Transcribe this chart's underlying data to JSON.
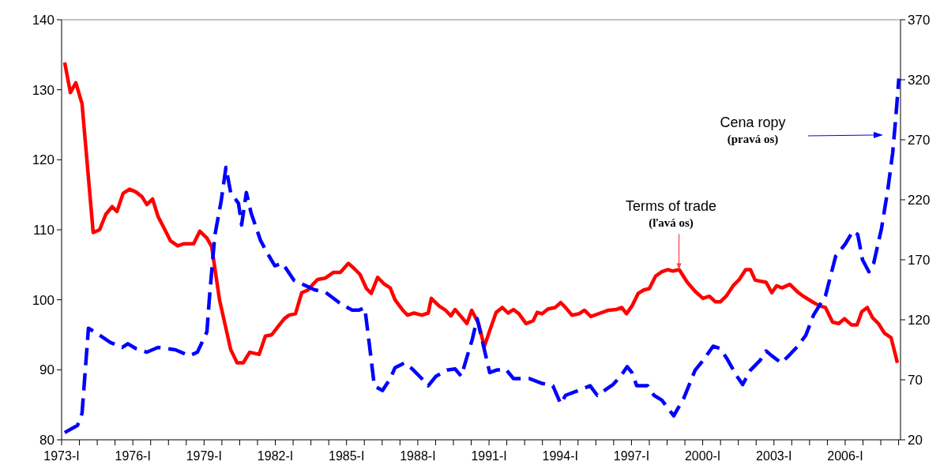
{
  "chart_data": {
    "type": "line",
    "xlim": [
      1973,
      2008.33
    ],
    "xticks": [
      {
        "value": 1973,
        "label": "1973-I"
      },
      {
        "value": 1973.75,
        "label": null
      },
      {
        "value": 1974.5,
        "label": null
      },
      {
        "value": 1975.25,
        "label": null
      },
      {
        "value": 1976,
        "label": "1976-I"
      },
      {
        "value": 1976.75,
        "label": null
      },
      {
        "value": 1977.5,
        "label": null
      },
      {
        "value": 1978.25,
        "label": null
      },
      {
        "value": 1979,
        "label": "1979-I"
      },
      {
        "value": 1979.75,
        "label": null
      },
      {
        "value": 1980.5,
        "label": null
      },
      {
        "value": 1981.25,
        "label": null
      },
      {
        "value": 1982,
        "label": "1982-I"
      },
      {
        "value": 1982.75,
        "label": null
      },
      {
        "value": 1983.5,
        "label": null
      },
      {
        "value": 1984.25,
        "label": null
      },
      {
        "value": 1985,
        "label": "1985-I"
      },
      {
        "value": 1985.75,
        "label": null
      },
      {
        "value": 1986.5,
        "label": null
      },
      {
        "value": 1987.25,
        "label": null
      },
      {
        "value": 1988,
        "label": "1988-I"
      },
      {
        "value": 1988.75,
        "label": null
      },
      {
        "value": 1989.5,
        "label": null
      },
      {
        "value": 1990.25,
        "label": null
      },
      {
        "value": 1991,
        "label": "1991-I"
      },
      {
        "value": 1991.75,
        "label": null
      },
      {
        "value": 1992.5,
        "label": null
      },
      {
        "value": 1993.25,
        "label": null
      },
      {
        "value": 1994,
        "label": "1994-I"
      },
      {
        "value": 1994.75,
        "label": null
      },
      {
        "value": 1995.5,
        "label": null
      },
      {
        "value": 1996.25,
        "label": null
      },
      {
        "value": 1997,
        "label": "1997-I"
      },
      {
        "value": 1997.75,
        "label": null
      },
      {
        "value": 1998.5,
        "label": null
      },
      {
        "value": 1999.25,
        "label": null
      },
      {
        "value": 2000,
        "label": "2000-I"
      },
      {
        "value": 2000.75,
        "label": null
      },
      {
        "value": 2001.5,
        "label": null
      },
      {
        "value": 2002.25,
        "label": null
      },
      {
        "value": 2003,
        "label": "2003-I"
      },
      {
        "value": 2003.75,
        "label": null
      },
      {
        "value": 2004.5,
        "label": null
      },
      {
        "value": 2005.25,
        "label": null
      },
      {
        "value": 2006,
        "label": "2006-I"
      },
      {
        "value": 2006.75,
        "label": null
      },
      {
        "value": 2007.5,
        "label": null
      },
      {
        "value": 2008.25,
        "label": null
      }
    ],
    "ylim": [
      80,
      140
    ],
    "yticks": [
      80,
      90,
      100,
      110,
      120,
      130,
      140
    ],
    "y2lim": [
      20,
      370
    ],
    "y2ticks": [
      20,
      70,
      120,
      170,
      220,
      270,
      320,
      370
    ],
    "grid": false,
    "marker": "none",
    "series": [
      {
        "color": "#ff0000",
        "line_style": "solid",
        "x": [
          1973.13,
          1973.37,
          1973.6,
          1973.86,
          1974.33,
          1974.6,
          1974.86,
          1975.13,
          1975.33,
          1975.59,
          1975.86,
          1976.13,
          1976.39,
          1976.59,
          1976.83,
          1977.06,
          1977.32,
          1977.59,
          1977.89,
          1978.16,
          1978.56,
          1978.82,
          1979.12,
          1979.32,
          1979.65,
          1980.12,
          1980.39,
          1980.65,
          1980.92,
          1981.32,
          1981.58,
          1981.85,
          1982.12,
          1982.38,
          1982.58,
          1982.85,
          1983.11,
          1983.38,
          1983.58,
          1983.78,
          1984.11,
          1984.44,
          1984.74,
          1985.08,
          1985.31,
          1985.57,
          1985.84,
          1986.04,
          1986.31,
          1986.57,
          1986.84,
          1987.04,
          1987.37,
          1987.57,
          1987.84,
          1988.17,
          1988.44,
          1988.57,
          1988.9,
          1989.17,
          1989.4,
          1989.57,
          1989.8,
          1990.07,
          1990.27,
          1990.56,
          1990.8,
          1991.03,
          1991.3,
          1991.56,
          1991.8,
          1992.03,
          1992.26,
          1992.56,
          1992.86,
          1993.03,
          1993.23,
          1993.49,
          1993.79,
          1994.02,
          1994.22,
          1994.49,
          1994.79,
          1995.02,
          1995.29,
          1995.69,
          1996.02,
          1996.35,
          1996.59,
          1996.79,
          1997.02,
          1997.28,
          1997.52,
          1997.75,
          1998.02,
          1998.28,
          1998.52,
          1998.75,
          1999.01,
          1999.35,
          1999.68,
          2000.01,
          2000.28,
          2000.54,
          2000.74,
          2001.01,
          2001.28,
          2001.54,
          2001.81,
          2002.01,
          2002.21,
          2002.67,
          2002.91,
          2003.11,
          2003.34,
          2003.67,
          2004,
          2004.24,
          2004.67,
          2004.94,
          2005.17,
          2005.47,
          2005.73,
          2005.97,
          2006.27,
          2006.5,
          2006.7,
          2006.93,
          2007.16,
          2007.4,
          2007.66,
          2007.93,
          2008.2
        ],
        "values": [
          133.9,
          129.6,
          131,
          128,
          109.6,
          110,
          112.2,
          113.3,
          112.6,
          115.2,
          115.8,
          115.4,
          114.7,
          113.6,
          114.4,
          111.9,
          110.2,
          108.4,
          107.7,
          108,
          108,
          109.8,
          108.8,
          107.6,
          100,
          92.9,
          91,
          91,
          92.5,
          92.2,
          94.8,
          95,
          96.2,
          97.3,
          97.8,
          98,
          101,
          101.4,
          102.2,
          102.9,
          103.1,
          103.9,
          103.9,
          105.2,
          104.5,
          103.6,
          101.6,
          100.9,
          103.2,
          102.3,
          101.7,
          100,
          98.5,
          97.8,
          98.1,
          97.8,
          98.1,
          100.2,
          99.1,
          98.5,
          97.7,
          98.6,
          97.7,
          96.6,
          98.5,
          96.6,
          93.3,
          95.6,
          98.2,
          98.9,
          98.1,
          98.6,
          98,
          96.6,
          97,
          98.2,
          98,
          98.7,
          98.9,
          99.6,
          98.9,
          97.8,
          98,
          98.5,
          97.6,
          98.1,
          98.5,
          98.6,
          98.9,
          98,
          99.1,
          100.9,
          101.4,
          101.6,
          103.4,
          104,
          104.3,
          104.1,
          104.3,
          102.5,
          101.2,
          100.2,
          100.5,
          99.7,
          99.7,
          100.6,
          102,
          102.9,
          104.3,
          104.3,
          102.8,
          102.5,
          101,
          102,
          101.7,
          102.2,
          101.1,
          100.5,
          99.6,
          99.1,
          98.9,
          96.8,
          96.6,
          97.3,
          96.4,
          96.4,
          98.3,
          98.9,
          97.4,
          96.6,
          95.2,
          94.6,
          91
        ]
      },
      {
        "color": "#0000ff",
        "line_style": "dashed",
        "axis": "y2",
        "x": [
          1973.13,
          1973.67,
          1973.86,
          1974.13,
          1974.46,
          1975.06,
          1975.56,
          1975.79,
          1976.13,
          1976.59,
          1977.06,
          1977.79,
          1978.39,
          1978.72,
          1979.12,
          1979.22,
          1979.45,
          1979.72,
          1979.92,
          1980.12,
          1980.45,
          1980.58,
          1980.78,
          1980.98,
          1981.38,
          1981.65,
          1981.98,
          1982.31,
          1982.78,
          1983.11,
          1983.65,
          1984.11,
          1984.71,
          1985.24,
          1985.51,
          1985.77,
          1985.97,
          1986.17,
          1986.51,
          1986.84,
          1987.04,
          1987.44,
          1987.77,
          1988.17,
          1988.44,
          1988.77,
          1989.23,
          1989.57,
          1989.83,
          1990.3,
          1990.5,
          1990.77,
          1991.03,
          1991.3,
          1991.7,
          1992.03,
          1992.69,
          1993.23,
          1993.69,
          1994.02,
          1994.22,
          1994.89,
          1995.26,
          1995.56,
          1996.22,
          1996.55,
          1996.82,
          1997.02,
          1997.22,
          1997.68,
          1997.95,
          1998.28,
          1998.78,
          1999.21,
          1999.68,
          2000.01,
          2000.44,
          2000.74,
          2001.01,
          2001.44,
          2001.68,
          2002.01,
          2002.41,
          2002.67,
          2002.91,
          2003.31,
          2003.67,
          2004,
          2004.34,
          2004.67,
          2005.17,
          2005.6,
          2006,
          2006.33,
          2006.53,
          2006.73,
          2007,
          2007.2,
          2007.53,
          2007.8,
          2008,
          2008.13,
          2008.26
        ],
        "values": [
          26,
          32,
          42,
          113,
          109,
          101,
          97,
          100,
          96,
          93,
          97,
          95,
          90,
          93,
          110,
          137,
          190,
          219,
          247,
          226,
          217,
          199,
          226,
          209,
          186,
          176,
          165,
          167,
          153,
          150,
          145,
          143,
          134,
          128,
          128,
          130,
          98,
          65,
          61,
          71,
          80,
          84,
          79,
          71,
          65,
          73,
          78,
          79,
          73,
          104,
          121,
          98,
          76,
          78,
          79,
          71,
          71,
          67,
          65,
          50,
          57,
          62,
          65,
          57,
          66,
          73,
          81,
          76,
          65,
          65,
          57,
          53,
          40,
          55,
          78,
          86,
          98,
          96,
          88,
          73,
          66,
          78,
          86,
          94,
          90,
          84,
          91,
          98,
          107,
          124,
          140,
          173,
          183,
          194,
          191,
          170,
          160,
          167,
          196,
          229,
          259,
          288,
          321
        ]
      }
    ],
    "annotations": [
      {
        "text": "Terms of trade\n(ľavá os)",
        "x": 1999,
        "y": 104.3
      },
      "Cena ropy\n(pravá os)"
    ]
  }
}
